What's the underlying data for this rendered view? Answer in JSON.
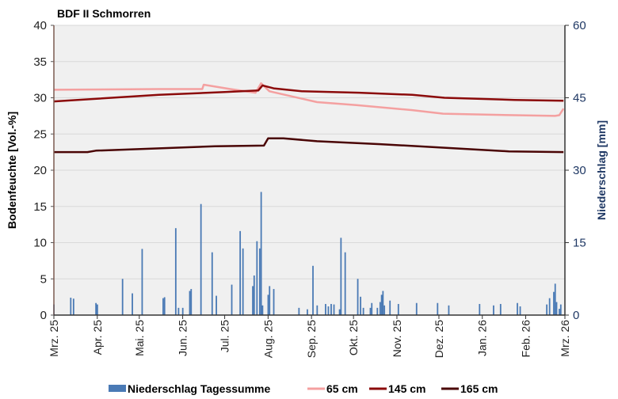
{
  "chart_data": {
    "type": "bar+line",
    "title": "BDF II Schmorren",
    "ylabel": "Bodenfeuchte [Vol.-%]",
    "y2label": "Niederschlag [mm]",
    "ylim": [
      0,
      40
    ],
    "y2lim": [
      0,
      60
    ],
    "yticks": [
      0,
      5,
      10,
      15,
      20,
      25,
      30,
      35,
      40
    ],
    "y2ticks": [
      0,
      15,
      30,
      45,
      60
    ],
    "xlim": [
      "2025-03-01",
      "2026-03-01"
    ],
    "xticks": [
      {
        "date": "2025-03-01",
        "label": "Mrz. 25"
      },
      {
        "date": "2025-04-01",
        "label": "Apr. 25"
      },
      {
        "date": "2025-05-01",
        "label": "Mai. 25"
      },
      {
        "date": "2025-06-01",
        "label": "Jun. 25"
      },
      {
        "date": "2025-07-01",
        "label": "Jul. 25"
      },
      {
        "date": "2025-08-01",
        "label": "Aug. 25"
      },
      {
        "date": "2025-09-01",
        "label": "Sep. 25"
      },
      {
        "date": "2025-10-01",
        "label": "Okt. 25"
      },
      {
        "date": "2025-11-01",
        "label": "Nov. 25"
      },
      {
        "date": "2025-12-01",
        "label": "Dez. 25"
      },
      {
        "date": "2026-01-01",
        "label": "Jan. 26"
      },
      {
        "date": "2026-02-01",
        "label": "Feb. 26"
      },
      {
        "date": "2026-03-01",
        "label": "Mrz. 26"
      }
    ],
    "grid": true,
    "legend_position": "bottom",
    "colors": {
      "precip": "#4a7ab5",
      "cm65": "#f4a0a0",
      "cm145": "#8b0a0a",
      "cm165": "#4a0505",
      "plot_bg": "#f0f0f0",
      "grid": "#d9d9d9",
      "right_axis": "#1f3864"
    },
    "precipitation": {
      "name": "Niederschlag Tagessumme",
      "axis": "right",
      "points": [
        [
          "2025-03-01",
          2.2
        ],
        [
          "2025-03-13",
          3.6
        ],
        [
          "2025-03-15",
          3.4
        ],
        [
          "2025-03-31",
          2.5
        ],
        [
          "2025-04-01",
          2.2
        ],
        [
          "2025-04-19",
          7.5
        ],
        [
          "2025-04-26",
          4.5
        ],
        [
          "2025-05-03",
          13.7
        ],
        [
          "2025-05-18",
          3.5
        ],
        [
          "2025-05-19",
          3.7
        ],
        [
          "2025-05-27",
          18
        ],
        [
          "2025-05-29",
          1.5
        ],
        [
          "2025-06-01",
          1.5
        ],
        [
          "2025-06-06",
          5
        ],
        [
          "2025-06-07",
          5.4
        ],
        [
          "2025-06-14",
          23
        ],
        [
          "2025-06-22",
          13
        ],
        [
          "2025-06-25",
          4
        ],
        [
          "2025-07-06",
          6.3
        ],
        [
          "2025-07-12",
          17.4
        ],
        [
          "2025-07-14",
          13.8
        ],
        [
          "2025-07-21",
          6
        ],
        [
          "2025-07-22",
          8.2
        ],
        [
          "2025-07-24",
          15.3
        ],
        [
          "2025-07-26",
          13.8
        ],
        [
          "2025-07-27",
          25.5
        ],
        [
          "2025-07-28",
          2
        ],
        [
          "2025-08-01",
          4.2
        ],
        [
          "2025-08-02",
          6
        ],
        [
          "2025-08-05",
          5.4
        ],
        [
          "2025-08-23",
          1.5
        ],
        [
          "2025-08-29",
          1.2
        ],
        [
          "2025-09-02",
          10.2
        ],
        [
          "2025-09-05",
          2
        ],
        [
          "2025-09-11",
          2.3
        ],
        [
          "2025-09-13",
          1.8
        ],
        [
          "2025-09-15",
          2.3
        ],
        [
          "2025-09-17",
          2.2
        ],
        [
          "2025-09-21",
          1.2
        ],
        [
          "2025-09-22",
          16
        ],
        [
          "2025-09-25",
          13
        ],
        [
          "2025-10-04",
          7.5
        ],
        [
          "2025-10-06",
          3.8
        ],
        [
          "2025-10-08",
          1.5
        ],
        [
          "2025-10-13",
          1.5
        ],
        [
          "2025-10-14",
          2.5
        ],
        [
          "2025-10-18",
          1.5
        ],
        [
          "2025-10-20",
          2.7
        ],
        [
          "2025-10-21",
          4.2
        ],
        [
          "2025-10-22",
          5
        ],
        [
          "2025-10-23",
          2
        ],
        [
          "2025-10-27",
          3
        ],
        [
          "2025-11-02",
          2.3
        ],
        [
          "2025-11-15",
          2.5
        ],
        [
          "2025-11-30",
          2.5
        ],
        [
          "2025-12-08",
          2
        ],
        [
          "2025-12-30",
          2.3
        ],
        [
          "2026-01-09",
          2
        ],
        [
          "2026-01-14",
          2.3
        ],
        [
          "2026-01-26",
          2.5
        ],
        [
          "2026-01-28",
          1.8
        ],
        [
          "2026-02-16",
          2.2
        ],
        [
          "2026-02-18",
          3.5
        ],
        [
          "2026-02-21",
          4.8
        ],
        [
          "2026-02-22",
          6.5
        ],
        [
          "2026-02-23",
          2.7
        ],
        [
          "2026-02-25",
          1.3
        ],
        [
          "2026-02-26",
          2.2
        ]
      ]
    },
    "series": [
      {
        "name": "65 cm",
        "axis": "left",
        "points": [
          [
            "2025-03-01",
            31.1
          ],
          [
            "2025-05-15",
            31.2
          ],
          [
            "2025-06-15",
            31.2
          ],
          [
            "2025-06-16",
            31.8
          ],
          [
            "2025-07-05",
            31.2
          ],
          [
            "2025-07-23",
            30.7
          ],
          [
            "2025-07-27",
            32.0
          ],
          [
            "2025-08-02",
            30.9
          ],
          [
            "2025-09-05",
            29.4
          ],
          [
            "2025-10-03",
            29.0
          ],
          [
            "2025-11-12",
            28.3
          ],
          [
            "2025-12-04",
            27.8
          ],
          [
            "2026-01-24",
            27.6
          ],
          [
            "2026-02-22",
            27.5
          ],
          [
            "2026-02-25",
            27.6
          ],
          [
            "2026-02-28",
            28.5
          ]
        ]
      },
      {
        "name": "145 cm",
        "axis": "left",
        "points": [
          [
            "2025-03-01",
            29.5
          ],
          [
            "2025-05-15",
            30.4
          ],
          [
            "2025-07-01",
            30.8
          ],
          [
            "2025-07-25",
            31.0
          ],
          [
            "2025-07-28",
            31.7
          ],
          [
            "2025-08-05",
            31.3
          ],
          [
            "2025-08-25",
            30.9
          ],
          [
            "2025-10-05",
            30.7
          ],
          [
            "2025-11-12",
            30.4
          ],
          [
            "2025-12-05",
            30.0
          ],
          [
            "2026-01-24",
            29.7
          ],
          [
            "2026-02-28",
            29.6
          ]
        ]
      },
      {
        "name": "165 cm",
        "axis": "left",
        "points": [
          [
            "2025-03-01",
            22.5
          ],
          [
            "2025-03-25",
            22.5
          ],
          [
            "2025-03-31",
            22.7
          ],
          [
            "2025-06-24",
            23.3
          ],
          [
            "2025-07-29",
            23.4
          ],
          [
            "2025-08-01",
            24.4
          ],
          [
            "2025-08-12",
            24.4
          ],
          [
            "2025-09-05",
            24.0
          ],
          [
            "2025-10-20",
            23.6
          ],
          [
            "2025-12-15",
            23.0
          ],
          [
            "2026-01-20",
            22.6
          ],
          [
            "2026-02-28",
            22.5
          ]
        ]
      }
    ]
  }
}
